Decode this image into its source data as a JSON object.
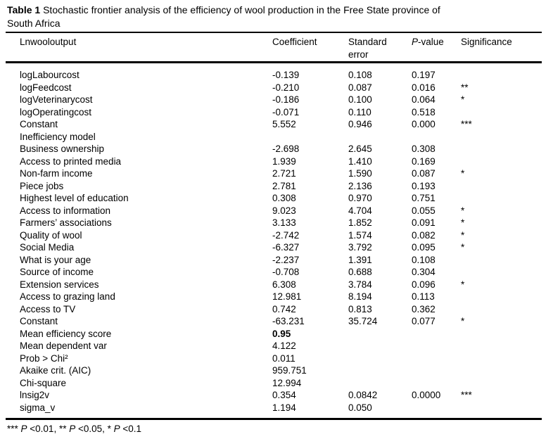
{
  "title": {
    "bold_label": "Table 1",
    "line1_rest": " Stochastic frontier analysis of the efficiency of wool production in the Free State province of",
    "line2": "South Africa"
  },
  "table": {
    "columns": [
      "Lnwooloutput",
      "Coefficient",
      "Standard error",
      "P-value",
      "Significance"
    ],
    "rows": [
      {
        "label": "logLabourcost",
        "coefficient": "-0.139",
        "std_error": "0.108",
        "p_value": "0.197",
        "significance": ""
      },
      {
        "label": "logFeedcost",
        "coefficient": "-0.210",
        "std_error": "0.087",
        "p_value": "0.016",
        "significance": "**"
      },
      {
        "label": "logVeterinarycost",
        "coefficient": "-0.186",
        "std_error": "0.100",
        "p_value": "0.064",
        "significance": "*"
      },
      {
        "label": "logOperatingcost",
        "coefficient": "-0.071",
        "std_error": "0.110",
        "p_value": "0.518",
        "significance": ""
      },
      {
        "label": "Constant",
        "coefficient": "5.552",
        "std_error": "0.946",
        "p_value": "0.000",
        "significance": "***"
      },
      {
        "label": "Inefficiency model",
        "coefficient": "",
        "std_error": "",
        "p_value": "",
        "significance": ""
      },
      {
        "label": "Business ownership",
        "coefficient": "-2.698",
        "std_error": "2.645",
        "p_value": "0.308",
        "significance": ""
      },
      {
        "label": "Access to printed media",
        "coefficient": "1.939",
        "std_error": "1.410",
        "p_value": "0.169",
        "significance": ""
      },
      {
        "label": "Non-farm income",
        "coefficient": "2.721",
        "std_error": "1.590",
        "p_value": "0.087",
        "significance": "*"
      },
      {
        "label": "Piece jobs",
        "coefficient": "2.781",
        "std_error": "2.136",
        "p_value": "0.193",
        "significance": ""
      },
      {
        "label": "Highest level of education",
        "coefficient": "0.308",
        "std_error": "0.970",
        "p_value": "0.751",
        "significance": ""
      },
      {
        "label": "Access to information",
        "coefficient": "9.023",
        "std_error": "4.704",
        "p_value": "0.055",
        "significance": "*"
      },
      {
        "label": "Farmers’ associations",
        "coefficient": "3.133",
        "std_error": "1.852",
        "p_value": "0.091",
        "significance": "*"
      },
      {
        "label": "Quality of wool",
        "coefficient": "-2.742",
        "std_error": "1.574",
        "p_value": "0.082",
        "significance": "*"
      },
      {
        "label": "Social Media",
        "coefficient": "-6.327",
        "std_error": "3.792",
        "p_value": "0.095",
        "significance": "*"
      },
      {
        "label": "What is your age",
        "coefficient": "-2.237",
        "std_error": "1.391",
        "p_value": "0.108",
        "significance": ""
      },
      {
        "label": "Source of income",
        "coefficient": "-0.708",
        "std_error": "0.688",
        "p_value": "0.304",
        "significance": ""
      },
      {
        "label": "Extension services",
        "coefficient": "6.308",
        "std_error": "3.784",
        "p_value": "0.096",
        "significance": "*"
      },
      {
        "label": "Access to grazing land",
        "coefficient": "12.981",
        "std_error": "8.194",
        "p_value": "0.113",
        "significance": ""
      },
      {
        "label": "Access to TV",
        "coefficient": "0.742",
        "std_error": "0.813",
        "p_value": "0.362",
        "significance": ""
      },
      {
        "label": "Constant",
        "coefficient": "-63.231",
        "std_error": "35.724",
        "p_value": "0.077",
        "significance": "*"
      },
      {
        "label": "Mean efficiency score",
        "coefficient": "0.95",
        "coefficient_bold": true,
        "std_error": "",
        "p_value": "",
        "significance": ""
      },
      {
        "label": "Mean dependent var",
        "coefficient": "4.122",
        "std_error": "",
        "p_value": "",
        "significance": ""
      },
      {
        "label": "Prob > Chi²",
        "coefficient": "0.011",
        "std_error": "",
        "p_value": "",
        "significance": ""
      },
      {
        "label": "Akaike crit. (AIC)",
        "coefficient": "959.751",
        "std_error": "",
        "p_value": "",
        "significance": ""
      },
      {
        "label": "Chi-square",
        "coefficient": "12.994",
        "std_error": "",
        "p_value": "",
        "significance": ""
      },
      {
        "label": "lnsig2v",
        "coefficient": "0.354",
        "std_error": "0.0842",
        "p_value": "0.0000",
        "significance": "***"
      },
      {
        "label": "sigma_v",
        "coefficient": "1.194",
        "std_error": "0.050",
        "p_value": "",
        "significance": ""
      }
    ]
  },
  "footnote": "*** P <0.01, ** P <0.05, * P <0.1"
}
